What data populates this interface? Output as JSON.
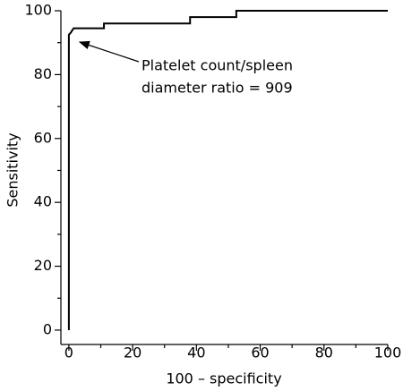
{
  "chart_data": {
    "type": "line",
    "x_label": "100 – specificity",
    "y_label": "Sensitivity",
    "annotation": [
      "Platelet count/spleen",
      "diameter ratio = 909"
    ],
    "series": [
      {
        "color": "#000000",
        "x": [
          0,
          0,
          0.5,
          1.5,
          11,
          11,
          38,
          38,
          52.5,
          52.5,
          100
        ],
        "values": [
          0,
          92.5,
          93,
          94.5,
          94.5,
          96,
          96,
          98,
          98,
          100,
          100
        ]
      }
    ],
    "xlim": [
      -2.5,
      100
    ],
    "ylim": [
      -4.5,
      100
    ],
    "xticks": [
      0,
      20,
      40,
      60,
      80,
      100
    ],
    "yticks": [
      0,
      20,
      40,
      60,
      80,
      100
    ],
    "xminor": [
      10,
      30,
      50,
      70,
      90
    ],
    "yminor": [
      10,
      30,
      50,
      70,
      90
    ],
    "grid": false
  }
}
